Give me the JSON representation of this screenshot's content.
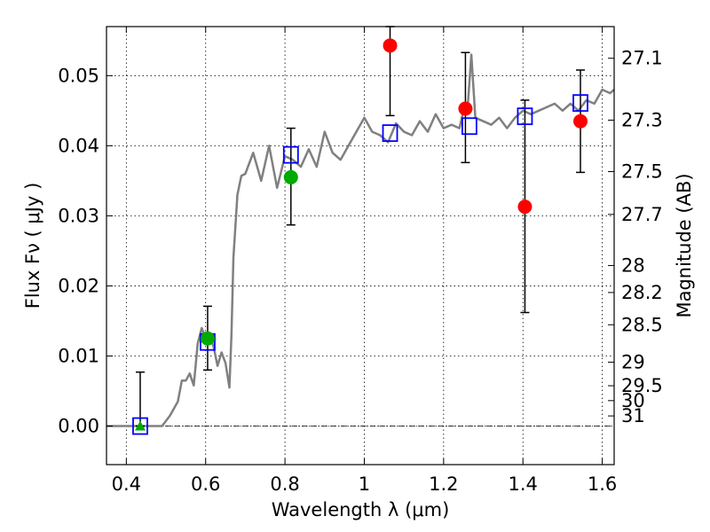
{
  "chart_data": {
    "type": "scatter",
    "xlabel": "Wavelength  λ (μm)",
    "ylabel": "Flux  Fν  ( μJy )",
    "y2label": "Magnitude (AB)",
    "xlim": [
      0.35,
      1.63
    ],
    "ylim": [
      -0.0055,
      0.057
    ],
    "x_ticks": [
      0.4,
      0.6,
      0.8,
      1.0,
      1.2,
      1.4,
      1.6
    ],
    "x_tick_labels": [
      "0.4",
      "0.6",
      "0.8",
      "1",
      "1.2",
      "1.4",
      "1.6"
    ],
    "y_ticks": [
      0.0,
      0.01,
      0.02,
      0.03,
      0.04,
      0.05
    ],
    "y_tick_labels": [
      "0.00",
      "0.01",
      "0.02",
      "0.03",
      "0.04",
      "0.05"
    ],
    "mag_ticks": [
      {
        "mag": 27.1,
        "label": "27.1"
      },
      {
        "mag": 27.3,
        "label": "27.3"
      },
      {
        "mag": 27.5,
        "label": "27.5"
      },
      {
        "mag": 27.7,
        "label": "27.7"
      },
      {
        "mag": 28,
        "label": "28"
      },
      {
        "mag": 28.2,
        "label": "28.2"
      },
      {
        "mag": 28.5,
        "label": "28.5"
      },
      {
        "mag": 29,
        "label": "29"
      },
      {
        "mag": 29.5,
        "label": "29.5"
      },
      {
        "mag": 30,
        "label": "30"
      },
      {
        "mag": 31,
        "label": "31"
      }
    ],
    "grid": true,
    "colors": {
      "spectrum": "#808080",
      "red": "#ff0000",
      "green": "#00aa00",
      "square": "#0000ff",
      "errorbar": "#000000",
      "zeroline": "#000000"
    },
    "series": [
      {
        "marker": "line",
        "x": [
          0.35,
          0.4,
          0.45,
          0.49,
          0.51,
          0.53,
          0.54,
          0.55,
          0.56,
          0.57,
          0.58,
          0.59,
          0.6,
          0.61,
          0.62,
          0.63,
          0.64,
          0.65,
          0.66,
          0.665,
          0.67,
          0.68,
          0.69,
          0.7,
          0.72,
          0.74,
          0.76,
          0.78,
          0.8,
          0.82,
          0.84,
          0.86,
          0.88,
          0.9,
          0.92,
          0.94,
          0.96,
          0.98,
          1.0,
          1.02,
          1.04,
          1.06,
          1.08,
          1.1,
          1.12,
          1.14,
          1.16,
          1.18,
          1.2,
          1.22,
          1.24,
          1.25,
          1.26,
          1.27,
          1.28,
          1.3,
          1.32,
          1.34,
          1.36,
          1.38,
          1.4,
          1.42,
          1.44,
          1.46,
          1.48,
          1.5,
          1.52,
          1.54,
          1.56,
          1.58,
          1.6,
          1.62,
          1.63
        ],
        "y": [
          0.0,
          0.0,
          0.0,
          0.0,
          0.0015,
          0.0035,
          0.0065,
          0.0065,
          0.0075,
          0.0058,
          0.0118,
          0.014,
          0.0125,
          0.0131,
          0.0113,
          0.0086,
          0.0105,
          0.009,
          0.0055,
          0.013,
          0.024,
          0.033,
          0.0357,
          0.036,
          0.039,
          0.035,
          0.04,
          0.034,
          0.0385,
          0.038,
          0.037,
          0.0395,
          0.037,
          0.042,
          0.039,
          0.038,
          0.04,
          0.042,
          0.044,
          0.042,
          0.0415,
          0.0405,
          0.0432,
          0.042,
          0.0415,
          0.0435,
          0.042,
          0.0445,
          0.0425,
          0.043,
          0.0425,
          0.045,
          0.045,
          0.053,
          0.044,
          0.0435,
          0.043,
          0.044,
          0.0425,
          0.044,
          0.045,
          0.0445,
          0.045,
          0.0455,
          0.046,
          0.045,
          0.046,
          0.045,
          0.0465,
          0.046,
          0.048,
          0.0475,
          0.048
        ]
      },
      {
        "marker": "square",
        "x": [
          0.435,
          0.605,
          0.815,
          1.065,
          1.265,
          1.405,
          1.545
        ],
        "y": [
          0.0,
          0.012,
          0.0387,
          0.0418,
          0.0428,
          0.0442,
          0.0461
        ]
      },
      {
        "marker": "red-circle",
        "x": [
          1.065,
          1.255,
          1.405,
          1.545
        ],
        "y": [
          0.0543,
          0.0453,
          0.0313,
          0.0435
        ],
        "yerr_low": [
          0.0443,
          0.0376,
          0.0162,
          0.0362
        ],
        "yerr_high": [
          0.057,
          0.0533,
          0.0465,
          0.0508
        ]
      },
      {
        "marker": "green-circle",
        "x": [
          0.605,
          0.815
        ],
        "y": [
          0.0125,
          0.0355
        ],
        "yerr_low": [
          0.008,
          0.0287
        ],
        "yerr_high": [
          0.0171,
          0.0425
        ]
      },
      {
        "marker": "green-triangle",
        "x": [
          0.435
        ],
        "y": [
          0.0
        ],
        "yerr_low": [
          0.0
        ],
        "yerr_high": [
          0.0077
        ]
      }
    ]
  }
}
